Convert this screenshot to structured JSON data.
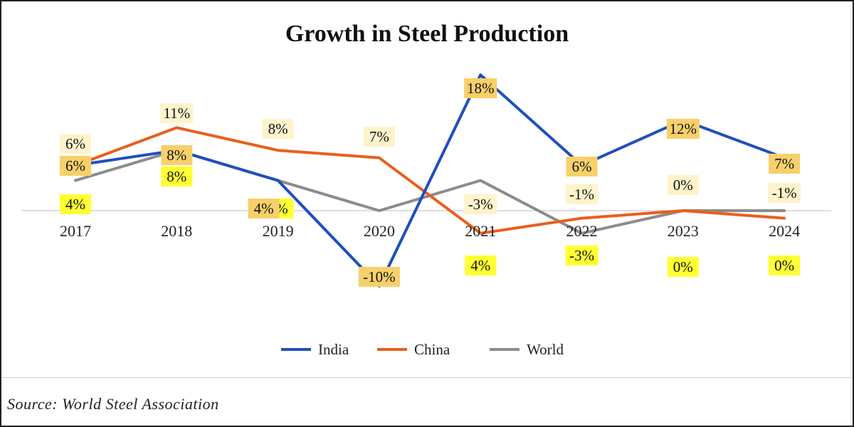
{
  "colors": {
    "india": "#1f4fbf",
    "china": "#e8601c",
    "world": "#8c8c8c",
    "axis": "#d4d4d4",
    "label_yellow": "#ffff33",
    "label_orange": "#f7d06a",
    "label_cream": "#fff3cc"
  },
  "chart_data": {
    "type": "line",
    "title": "Growth in Steel Production",
    "categories": [
      "2017",
      "2018",
      "2019",
      "2020",
      "2021",
      "2022",
      "2023",
      "2024"
    ],
    "series": [
      {
        "name": "India",
        "values": [
          6,
          8,
          4,
          -10,
          18,
          6,
          12,
          7
        ]
      },
      {
        "name": "China",
        "values": [
          6,
          11,
          8,
          7,
          -3,
          -1,
          0,
          -1
        ]
      },
      {
        "name": "World",
        "values": [
          4,
          8,
          4,
          0,
          4,
          -3,
          0,
          0
        ]
      }
    ],
    "data_labels": {
      "India": [
        "6%",
        "8%",
        "4%",
        "-10%",
        "18%",
        "6%",
        "12%",
        "7%"
      ],
      "China": [
        "6%",
        "11%",
        "8%",
        "7%",
        "-3%",
        "-1%",
        "0%",
        "-1%"
      ],
      "World": [
        "4%",
        "8%",
        "4%",
        "",
        "4%",
        "-3%",
        "0%",
        "0%"
      ]
    },
    "legend": [
      "India",
      "China",
      "World"
    ],
    "legend_position": "bottom",
    "grid": false
  },
  "footer": {
    "source": "Source: World Steel Association"
  }
}
